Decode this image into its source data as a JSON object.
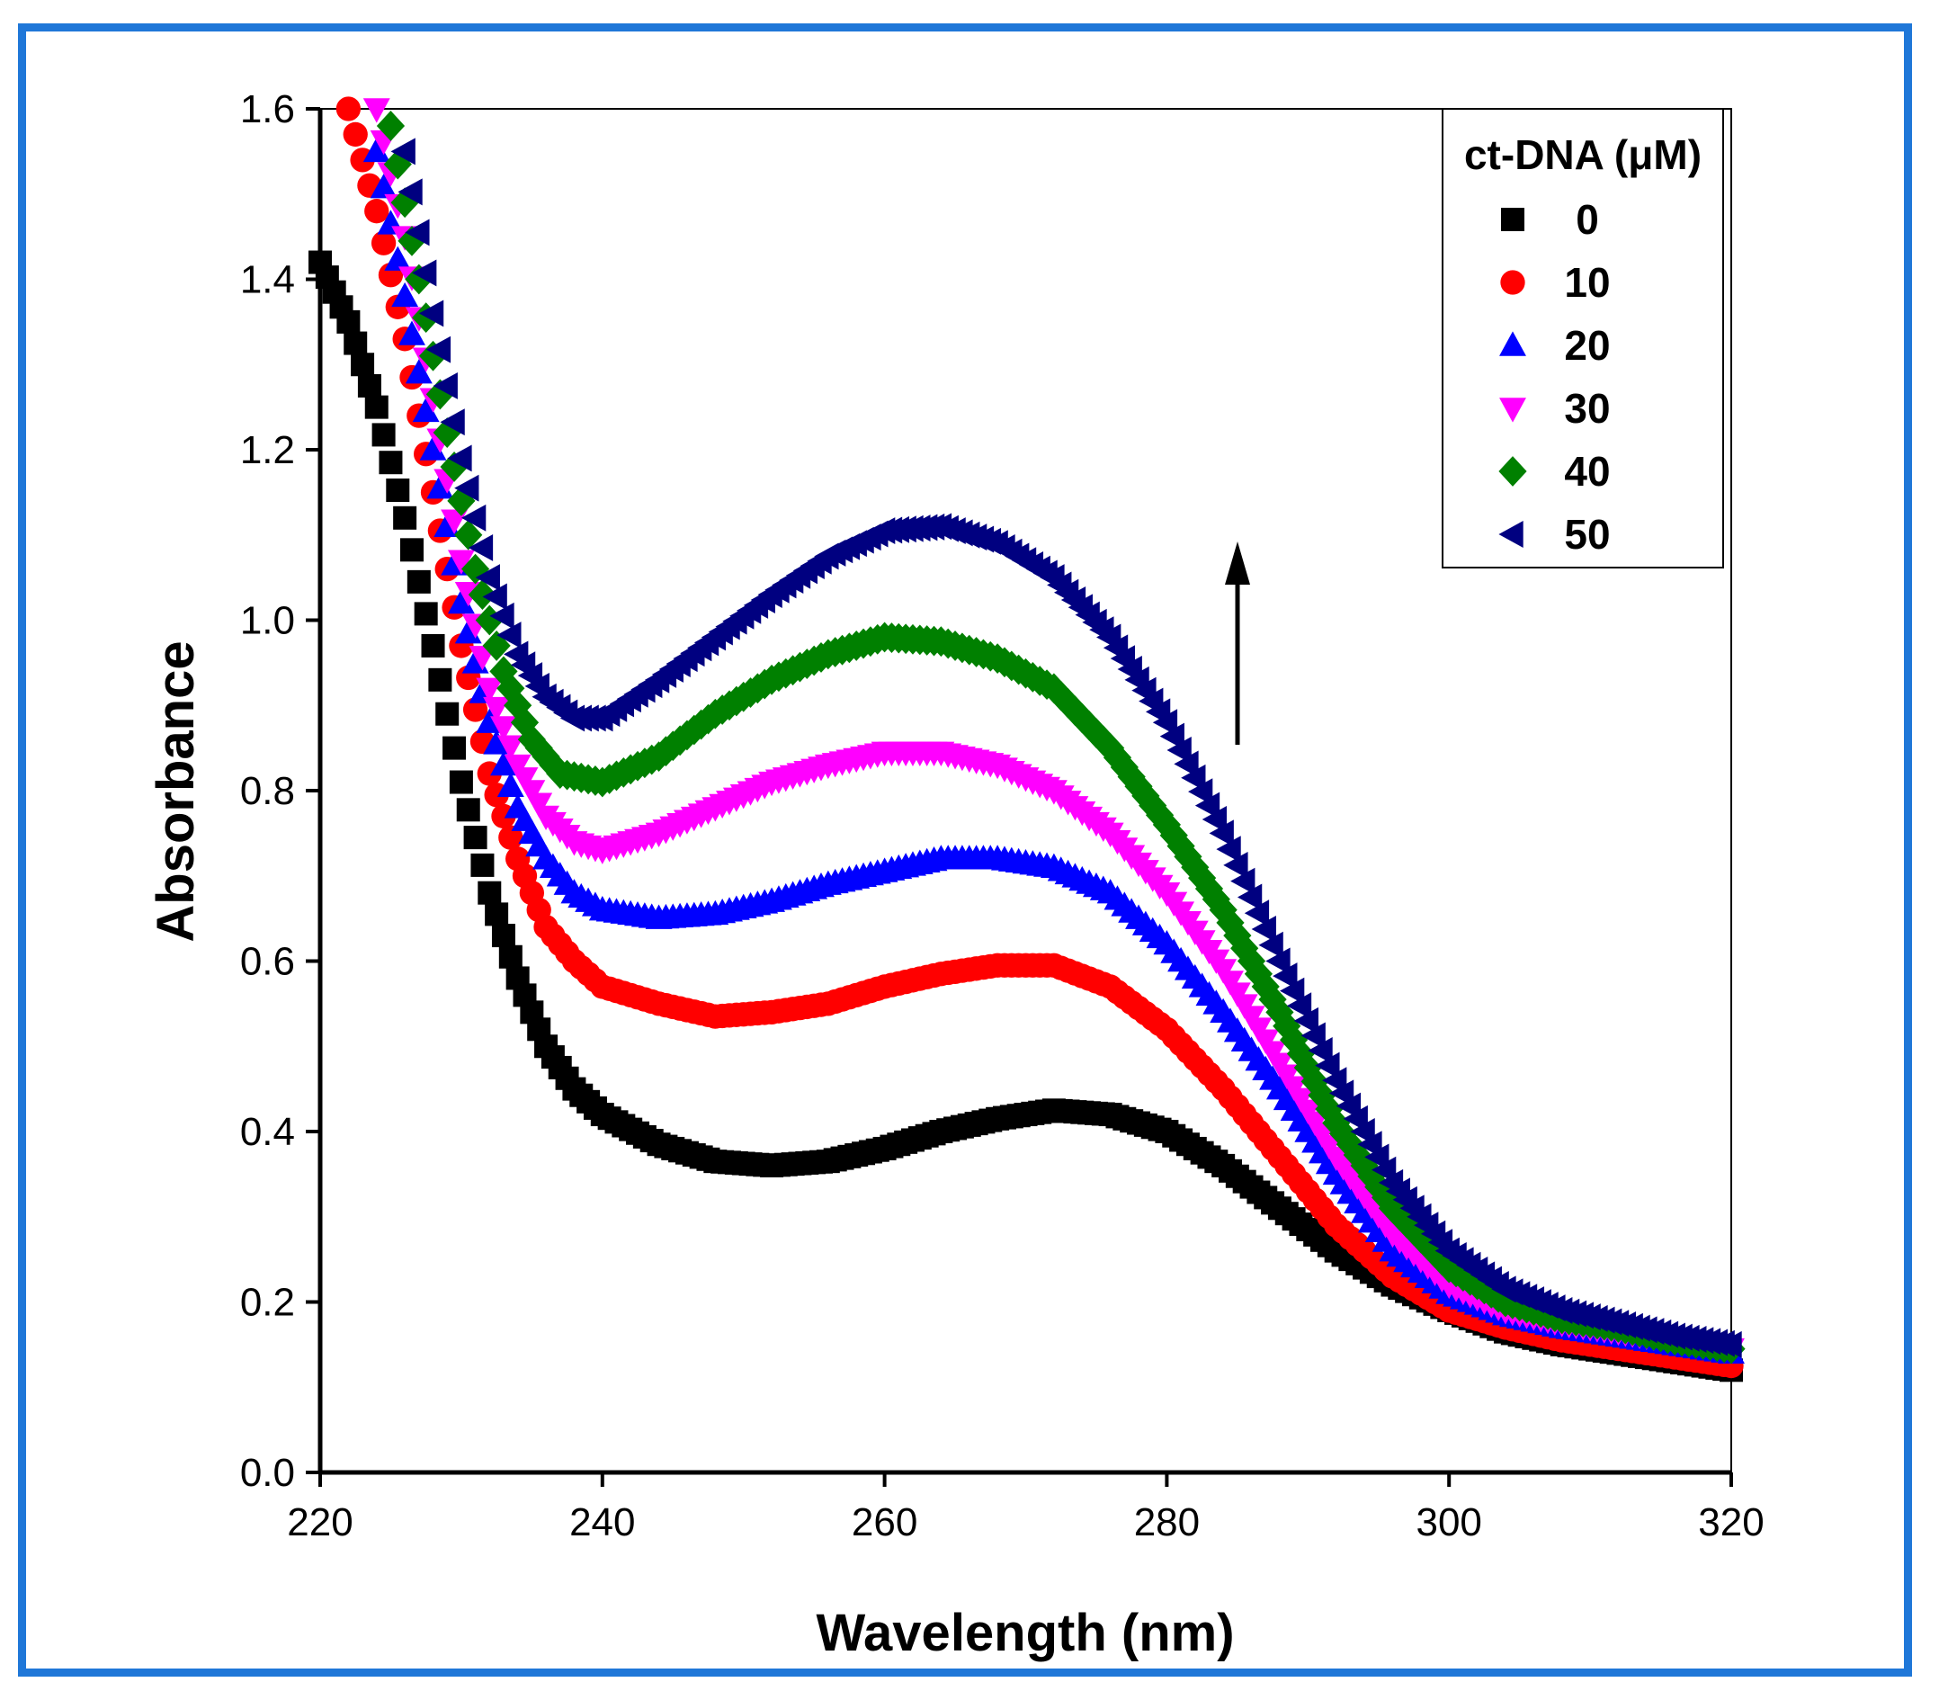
{
  "colors": {
    "frame": "#1f77d8",
    "series": [
      "#000000",
      "#ff0000",
      "#0000ff",
      "#ff00ff",
      "#008000",
      "#000080"
    ]
  },
  "chart_data": {
    "type": "scatter",
    "xlabel": "Wavelength (nm)",
    "ylabel": "Absorbance",
    "xlim": [
      220,
      320
    ],
    "ylim": [
      0.0,
      1.6
    ],
    "xticks": [
      "220",
      "240",
      "260",
      "280",
      "300",
      "320"
    ],
    "yticks": [
      "0.0",
      "0.2",
      "0.4",
      "0.6",
      "0.8",
      "1.0",
      "1.2",
      "1.4",
      "1.6"
    ],
    "grid": false,
    "legend": {
      "title": "ct-DNA (μM)",
      "placement": "top-right"
    },
    "annotation": "upward arrow indicating increasing absorbance",
    "series": [
      {
        "name": "0",
        "marker": "square",
        "color": "#000000",
        "points": [
          [
            220,
            1.42
          ],
          [
            222,
            1.35
          ],
          [
            224,
            1.25
          ],
          [
            226,
            1.12
          ],
          [
            228,
            0.97
          ],
          [
            230,
            0.81
          ],
          [
            232,
            0.68
          ],
          [
            234,
            0.58
          ],
          [
            236,
            0.5
          ],
          [
            238,
            0.45
          ],
          [
            240,
            0.42
          ],
          [
            244,
            0.385
          ],
          [
            248,
            0.365
          ],
          [
            252,
            0.36
          ],
          [
            256,
            0.365
          ],
          [
            260,
            0.38
          ],
          [
            264,
            0.4
          ],
          [
            268,
            0.415
          ],
          [
            272,
            0.425
          ],
          [
            276,
            0.42
          ],
          [
            280,
            0.4
          ],
          [
            284,
            0.36
          ],
          [
            288,
            0.31
          ],
          [
            292,
            0.26
          ],
          [
            296,
            0.22
          ],
          [
            300,
            0.19
          ],
          [
            304,
            0.165
          ],
          [
            308,
            0.15
          ],
          [
            312,
            0.14
          ],
          [
            316,
            0.13
          ],
          [
            320,
            0.12
          ]
        ]
      },
      {
        "name": "10",
        "marker": "circle",
        "color": "#ff0000",
        "points": [
          [
            222,
            1.6
          ],
          [
            224,
            1.48
          ],
          [
            226,
            1.33
          ],
          [
            228,
            1.15
          ],
          [
            230,
            0.97
          ],
          [
            232,
            0.82
          ],
          [
            234,
            0.72
          ],
          [
            236,
            0.64
          ],
          [
            238,
            0.6
          ],
          [
            240,
            0.57
          ],
          [
            244,
            0.55
          ],
          [
            248,
            0.535
          ],
          [
            252,
            0.54
          ],
          [
            256,
            0.55
          ],
          [
            260,
            0.57
          ],
          [
            264,
            0.585
          ],
          [
            268,
            0.595
          ],
          [
            272,
            0.595
          ],
          [
            276,
            0.57
          ],
          [
            280,
            0.52
          ],
          [
            284,
            0.45
          ],
          [
            288,
            0.37
          ],
          [
            292,
            0.29
          ],
          [
            296,
            0.23
          ],
          [
            300,
            0.19
          ],
          [
            304,
            0.17
          ],
          [
            308,
            0.155
          ],
          [
            312,
            0.145
          ],
          [
            316,
            0.135
          ],
          [
            320,
            0.125
          ]
        ]
      },
      {
        "name": "20",
        "marker": "triangle-up",
        "color": "#0000ff",
        "points": [
          [
            224,
            1.55
          ],
          [
            226,
            1.38
          ],
          [
            228,
            1.2
          ],
          [
            230,
            1.02
          ],
          [
            232,
            0.88
          ],
          [
            234,
            0.78
          ],
          [
            236,
            0.72
          ],
          [
            238,
            0.68
          ],
          [
            240,
            0.66
          ],
          [
            244,
            0.65
          ],
          [
            248,
            0.655
          ],
          [
            252,
            0.67
          ],
          [
            256,
            0.69
          ],
          [
            260,
            0.705
          ],
          [
            264,
            0.72
          ],
          [
            268,
            0.72
          ],
          [
            272,
            0.71
          ],
          [
            276,
            0.68
          ],
          [
            280,
            0.62
          ],
          [
            284,
            0.54
          ],
          [
            288,
            0.45
          ],
          [
            292,
            0.35
          ],
          [
            296,
            0.26
          ],
          [
            300,
            0.21
          ],
          [
            304,
            0.185
          ],
          [
            308,
            0.17
          ],
          [
            312,
            0.16
          ],
          [
            316,
            0.15
          ],
          [
            320,
            0.14
          ]
        ]
      },
      {
        "name": "30",
        "marker": "triangle-down",
        "color": "#ff00ff",
        "points": [
          [
            224,
            1.6
          ],
          [
            226,
            1.45
          ],
          [
            228,
            1.26
          ],
          [
            230,
            1.07
          ],
          [
            232,
            0.92
          ],
          [
            234,
            0.83
          ],
          [
            236,
            0.77
          ],
          [
            238,
            0.74
          ],
          [
            240,
            0.73
          ],
          [
            244,
            0.75
          ],
          [
            248,
            0.78
          ],
          [
            252,
            0.81
          ],
          [
            256,
            0.83
          ],
          [
            260,
            0.845
          ],
          [
            264,
            0.845
          ],
          [
            268,
            0.83
          ],
          [
            272,
            0.8
          ],
          [
            276,
            0.75
          ],
          [
            280,
            0.68
          ],
          [
            284,
            0.59
          ],
          [
            288,
            0.48
          ],
          [
            292,
            0.37
          ],
          [
            296,
            0.28
          ],
          [
            300,
            0.22
          ],
          [
            304,
            0.19
          ],
          [
            308,
            0.175
          ],
          [
            312,
            0.165
          ],
          [
            316,
            0.155
          ],
          [
            320,
            0.145
          ]
        ]
      },
      {
        "name": "40",
        "marker": "diamond",
        "color": "#008000",
        "points": [
          [
            225,
            1.58
          ],
          [
            227,
            1.4
          ],
          [
            229,
            1.22
          ],
          [
            231,
            1.06
          ],
          [
            233,
            0.94
          ],
          [
            235,
            0.86
          ],
          [
            237,
            0.82
          ],
          [
            240,
            0.81
          ],
          [
            244,
            0.84
          ],
          [
            248,
            0.89
          ],
          [
            252,
            0.93
          ],
          [
            256,
            0.96
          ],
          [
            260,
            0.98
          ],
          [
            264,
            0.975
          ],
          [
            268,
            0.955
          ],
          [
            272,
            0.92
          ],
          [
            276,
            0.85
          ],
          [
            280,
            0.76
          ],
          [
            284,
            0.66
          ],
          [
            288,
            0.54
          ],
          [
            292,
            0.41
          ],
          [
            296,
            0.31
          ],
          [
            300,
            0.24
          ],
          [
            304,
            0.2
          ],
          [
            308,
            0.18
          ],
          [
            312,
            0.17
          ],
          [
            316,
            0.155
          ],
          [
            320,
            0.145
          ]
        ]
      },
      {
        "name": "50",
        "marker": "triangle-left",
        "color": "#000080",
        "points": [
          [
            226,
            1.55
          ],
          [
            228,
            1.36
          ],
          [
            230,
            1.19
          ],
          [
            232,
            1.05
          ],
          [
            234,
            0.96
          ],
          [
            236,
            0.91
          ],
          [
            238,
            0.885
          ],
          [
            240,
            0.885
          ],
          [
            244,
            0.93
          ],
          [
            248,
            0.98
          ],
          [
            252,
            1.03
          ],
          [
            256,
            1.075
          ],
          [
            260,
            1.105
          ],
          [
            264,
            1.11
          ],
          [
            268,
            1.09
          ],
          [
            272,
            1.05
          ],
          [
            276,
            0.98
          ],
          [
            280,
            0.88
          ],
          [
            284,
            0.75
          ],
          [
            288,
            0.6
          ],
          [
            292,
            0.46
          ],
          [
            296,
            0.34
          ],
          [
            300,
            0.26
          ],
          [
            304,
            0.215
          ],
          [
            308,
            0.19
          ],
          [
            312,
            0.175
          ],
          [
            316,
            0.16
          ],
          [
            320,
            0.15
          ]
        ]
      }
    ]
  }
}
